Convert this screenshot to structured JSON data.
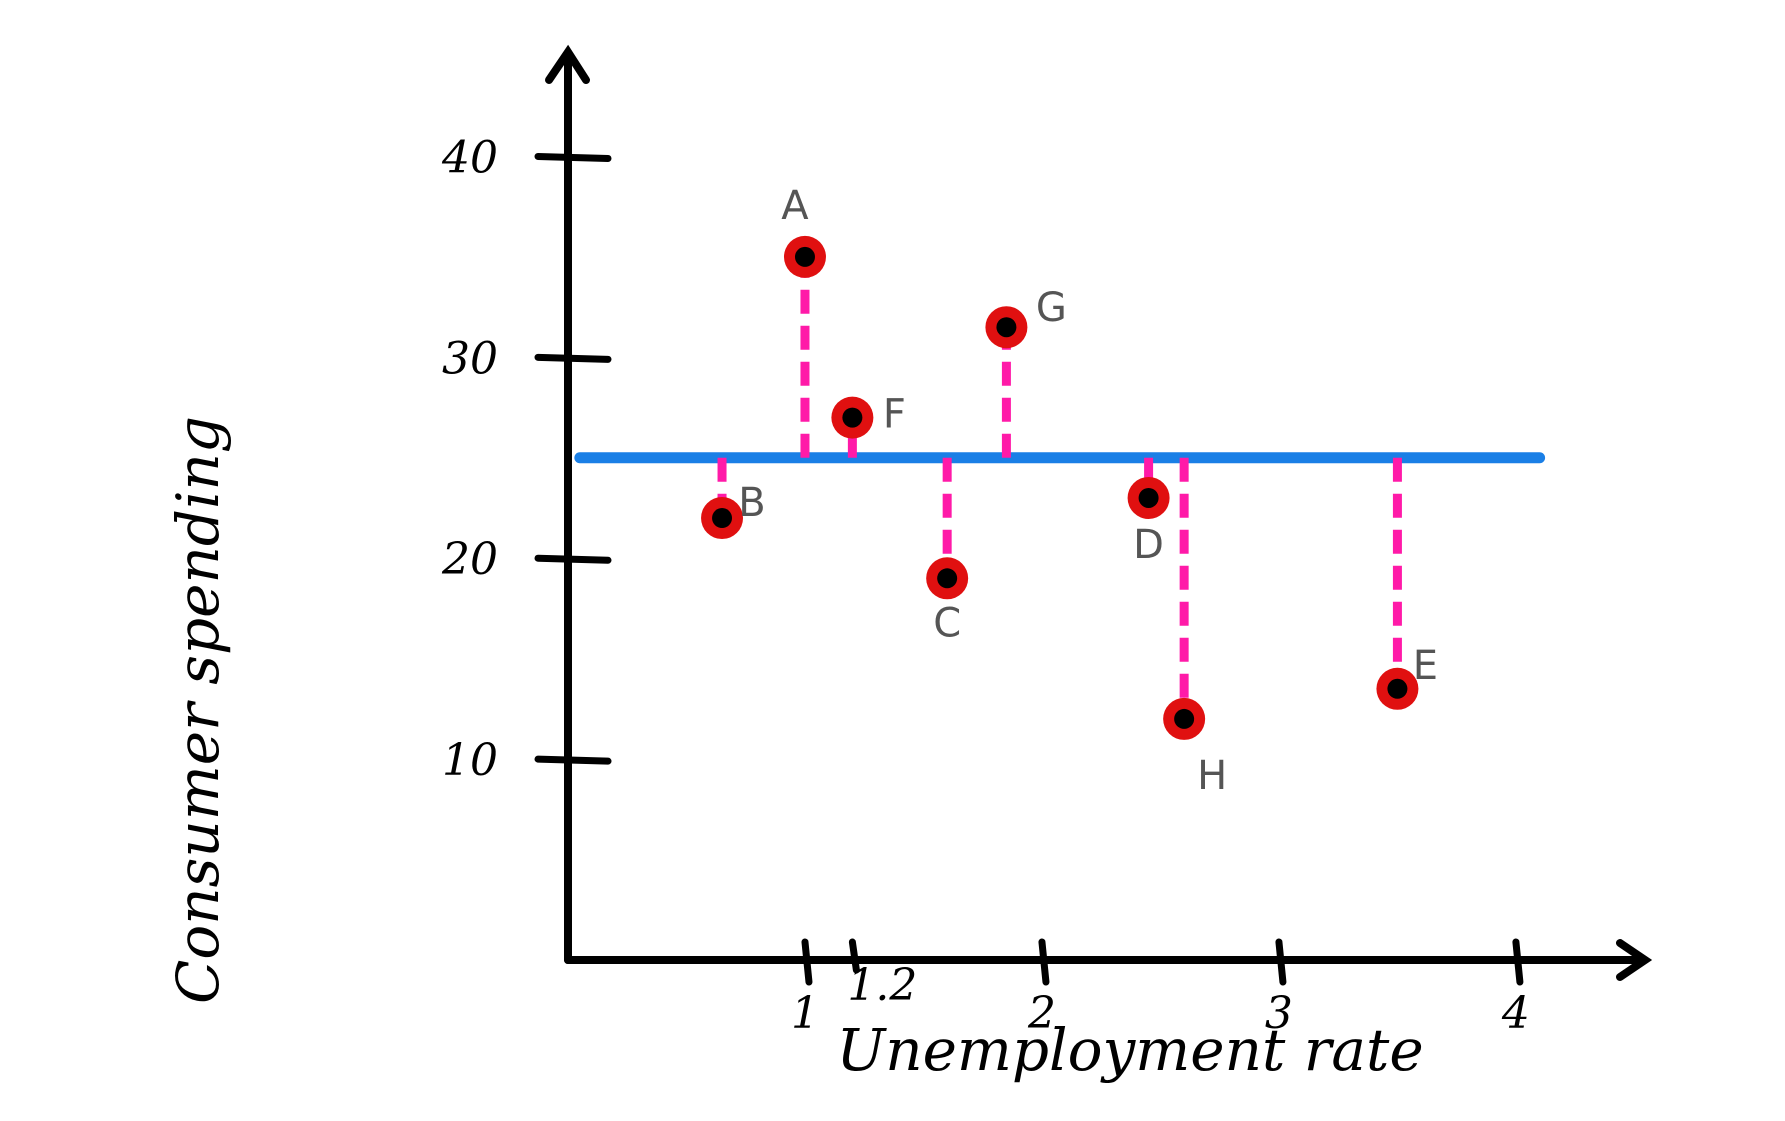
{
  "chart_data": {
    "type": "scatter",
    "title": "",
    "xlabel": "Unemployment rate",
    "ylabel": "Consumer spending",
    "x_ticks": [
      {
        "value": 1,
        "label": "1"
      },
      {
        "value": 1.2,
        "label": "1.2"
      },
      {
        "value": 2,
        "label": "2"
      },
      {
        "value": 3,
        "label": "3"
      },
      {
        "value": 4,
        "label": "4"
      }
    ],
    "y_ticks": [
      {
        "value": 10,
        "label": "10"
      },
      {
        "value": 20,
        "label": "20"
      },
      {
        "value": 30,
        "label": "30"
      },
      {
        "value": 40,
        "label": "40"
      }
    ],
    "xlim": [
      0,
      4.3
    ],
    "ylim": [
      0,
      45
    ],
    "mean_line": {
      "y": 25
    },
    "points": [
      {
        "label": "A",
        "x": 1.0,
        "y": 35
      },
      {
        "label": "B",
        "x": 0.65,
        "y": 22
      },
      {
        "label": "F",
        "x": 1.2,
        "y": 27
      },
      {
        "label": "C",
        "x": 1.6,
        "y": 19
      },
      {
        "label": "G",
        "x": 1.85,
        "y": 31.5
      },
      {
        "label": "D",
        "x": 2.45,
        "y": 23
      },
      {
        "label": "H",
        "x": 2.6,
        "y": 12
      },
      {
        "label": "E",
        "x": 3.5,
        "y": 13.5
      }
    ],
    "colors": {
      "axis": "#000000",
      "mean_line": "#1a7fe6",
      "residual": "#ff1aa8",
      "point_ring": "#e01010",
      "point_core": "#000000",
      "point_label": "#555555"
    },
    "grid": false,
    "legend": "none"
  }
}
